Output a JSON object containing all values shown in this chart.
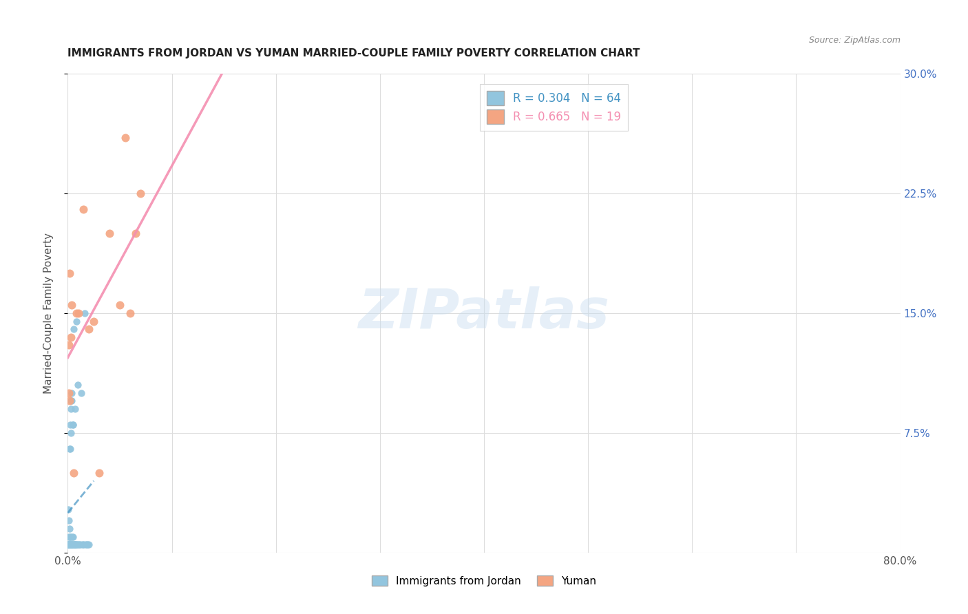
{
  "title": "IMMIGRANTS FROM JORDAN VS YUMAN MARRIED-COUPLE FAMILY POVERTY CORRELATION CHART",
  "source": "Source: ZipAtlas.com",
  "ylabel": "Married-Couple Family Poverty",
  "xlim": [
    0,
    0.8
  ],
  "ylim": [
    0,
    0.3
  ],
  "xticks": [
    0.0,
    0.1,
    0.2,
    0.3,
    0.4,
    0.5,
    0.6,
    0.7,
    0.8
  ],
  "xticklabels": [
    "0.0%",
    "",
    "",
    "",
    "",
    "",
    "",
    "",
    "80.0%"
  ],
  "yticks": [
    0.0,
    0.075,
    0.15,
    0.225,
    0.3
  ],
  "yticklabels_right": [
    "",
    "7.5%",
    "15.0%",
    "22.5%",
    "30.0%"
  ],
  "legend_r1": "R = 0.304",
  "legend_n1": "N = 64",
  "legend_r2": "R = 0.665",
  "legend_n2": "N = 19",
  "color_jordan": "#92c5de",
  "color_yuman": "#f4a582",
  "color_jordan_line": "#4393c3",
  "color_yuman_line": "#f48fb1",
  "watermark": "ZIPatlas",
  "jordan_x": [
    0.0005,
    0.0006,
    0.0007,
    0.0008,
    0.0009,
    0.001,
    0.001,
    0.0011,
    0.0012,
    0.0013,
    0.0014,
    0.0015,
    0.0015,
    0.0016,
    0.0017,
    0.0018,
    0.0019,
    0.002,
    0.002,
    0.0021,
    0.0022,
    0.0022,
    0.0023,
    0.0024,
    0.0025,
    0.0026,
    0.0027,
    0.0028,
    0.003,
    0.003,
    0.0032,
    0.0033,
    0.0035,
    0.0037,
    0.0039,
    0.004,
    0.0042,
    0.0044,
    0.0046,
    0.0048,
    0.005,
    0.0053,
    0.0056,
    0.006,
    0.0063,
    0.0066,
    0.007,
    0.0073,
    0.0076,
    0.008,
    0.0085,
    0.009,
    0.0095,
    0.01,
    0.011,
    0.012,
    0.013,
    0.014,
    0.015,
    0.016,
    0.017,
    0.018,
    0.019,
    0.02
  ],
  "jordan_y": [
    0.027,
    0.005,
    0.005,
    0.005,
    0.005,
    0.005,
    0.02,
    0.005,
    0.005,
    0.01,
    0.005,
    0.005,
    0.005,
    0.015,
    0.005,
    0.01,
    0.005,
    0.005,
    0.065,
    0.01,
    0.005,
    0.08,
    0.005,
    0.005,
    0.005,
    0.065,
    0.075,
    0.09,
    0.01,
    0.095,
    0.005,
    0.005,
    0.1,
    0.005,
    0.005,
    0.095,
    0.005,
    0.01,
    0.005,
    0.08,
    0.08,
    0.01,
    0.005,
    0.14,
    0.005,
    0.005,
    0.005,
    0.09,
    0.005,
    0.145,
    0.005,
    0.005,
    0.105,
    0.005,
    0.005,
    0.005,
    0.1,
    0.005,
    0.005,
    0.15,
    0.005,
    0.005,
    0.005,
    0.005
  ],
  "yuman_x": [
    0.0008,
    0.001,
    0.0015,
    0.002,
    0.003,
    0.004,
    0.006,
    0.008,
    0.01,
    0.015,
    0.02,
    0.025,
    0.03,
    0.04,
    0.05,
    0.055,
    0.06,
    0.065,
    0.07
  ],
  "yuman_y": [
    0.1,
    0.13,
    0.175,
    0.095,
    0.135,
    0.155,
    0.05,
    0.15,
    0.15,
    0.215,
    0.14,
    0.145,
    0.05,
    0.2,
    0.155,
    0.26,
    0.15,
    0.2,
    0.225
  ],
  "background_color": "#ffffff",
  "grid_color": "#dddddd",
  "tick_color": "#4472c4",
  "jordan_line_x": [
    0.0,
    0.025
  ],
  "yuman_line_x": [
    0.0,
    0.8
  ]
}
